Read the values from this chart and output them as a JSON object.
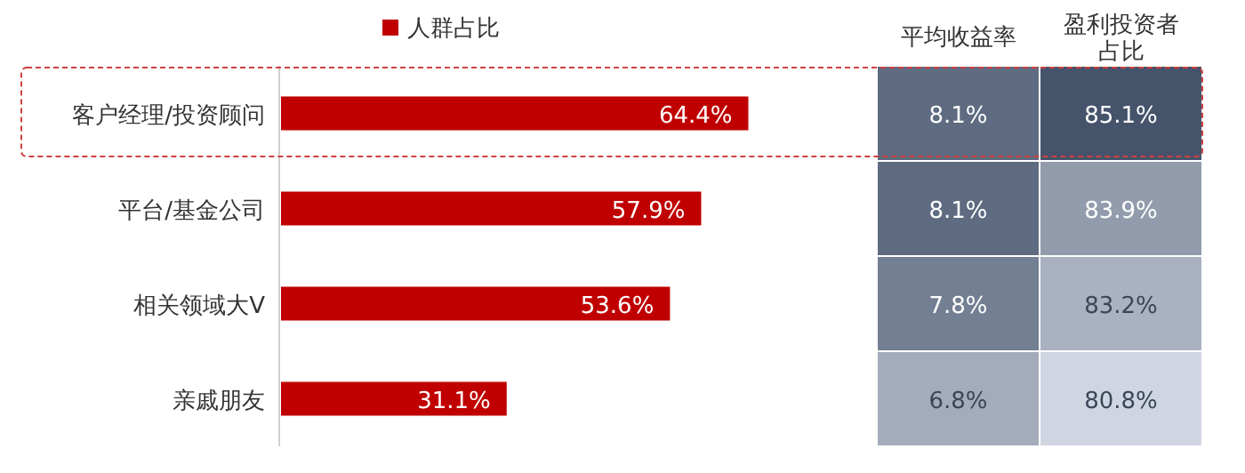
{
  "chart_data": [
    {
      "type": "bar",
      "orientation": "horizontal",
      "legend": "top",
      "categories": [
        "客户经理/投资顾问",
        "平台/基金公司",
        "相关领域大V",
        "亲戚朋友"
      ],
      "series": [
        {
          "name": "人群占比",
          "color": "#c00000",
          "values": [
            64.4,
            57.9,
            53.6,
            31.1
          ],
          "value_labels": [
            "64.4%",
            "57.9%",
            "53.6%",
            "31.1%"
          ]
        }
      ]
    },
    {
      "type": "heatmap",
      "categories": [
        "平均收益率",
        "盈利投资者占比"
      ],
      "y_categories": [
        null,
        null,
        null,
        null
      ],
      "cells": [
        [
          8.1,
          85.1
        ],
        [
          8.1,
          83.9
        ],
        [
          7.8,
          83.2
        ],
        [
          6.8,
          80.8
        ]
      ],
      "cell_labels": [
        [
          "8.1%",
          "85.1%"
        ],
        [
          "8.1%",
          "83.9%"
        ],
        [
          "7.8%",
          "83.2%"
        ],
        [
          "6.8%",
          "80.8%"
        ]
      ]
    }
  ]
}
